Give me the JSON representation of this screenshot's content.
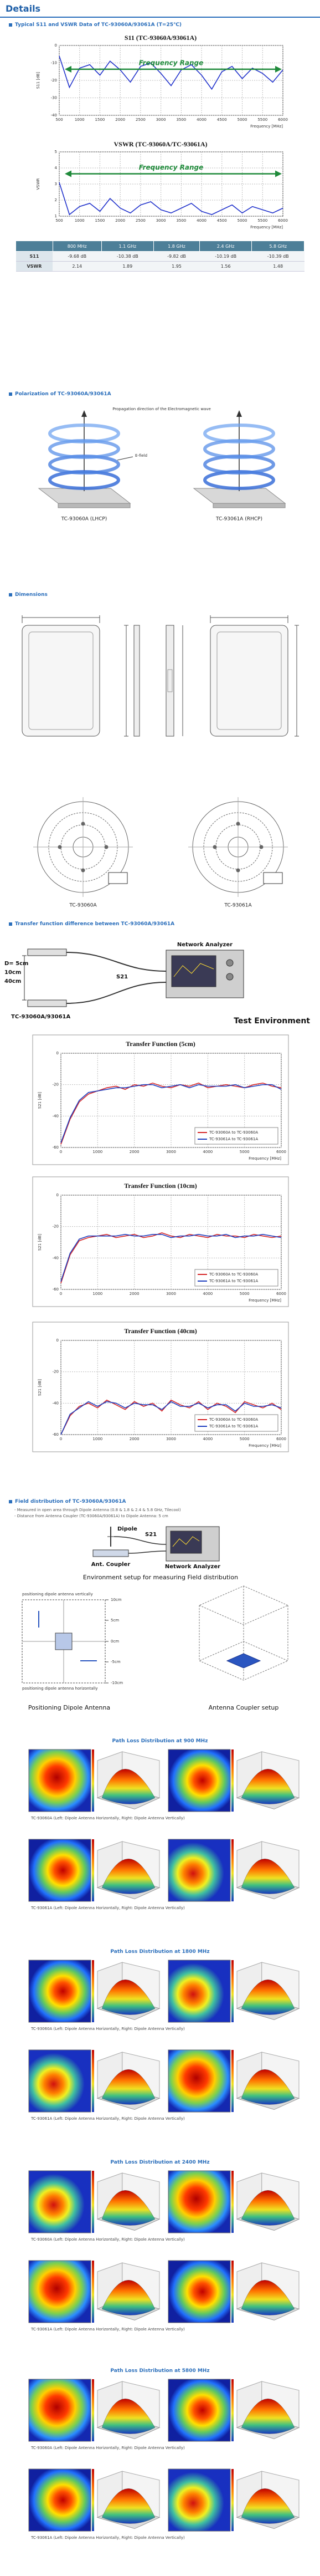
{
  "header": {
    "title": "Details"
  },
  "sections": [
    "Typical S11 and VSWR Data of TC-93060A/93061A (T=25℃)",
    "Polarization of TC-93060A/93061A",
    "Dimensions",
    "Transfer function difference between TC-93060A/93061A",
    "Field distribution of TC-93060A/93061A"
  ],
  "chart_data": [
    {
      "type": "line",
      "title": "S11 (TC-93060A/93061A)",
      "annotation": "Frequency Range",
      "annotation_color": "#1f8a3a",
      "x_label": "Frequency [MHz]",
      "y_label": "S11 [dB]",
      "x": [
        500,
        750,
        1000,
        1250,
        1500,
        1750,
        2000,
        2250,
        2500,
        2750,
        3000,
        3250,
        3500,
        3750,
        4000,
        4250,
        4500,
        4750,
        5000,
        5250,
        5500,
        5750,
        6000
      ],
      "values": [
        -6,
        -24,
        -13,
        -11,
        -17,
        -9,
        -14,
        -21,
        -12,
        -10,
        -16,
        -23,
        -14,
        -11,
        -17,
        -25,
        -15,
        -12,
        -19,
        -13,
        -16,
        -21,
        -14
      ],
      "color": "#2233cc",
      "xlim": [
        500,
        6000
      ],
      "xticks": [
        500,
        1000,
        1500,
        2000,
        2500,
        3000,
        3500,
        4000,
        4500,
        5000,
        5500,
        6000
      ],
      "ylim": [
        -40,
        0
      ],
      "yticks": [
        -40,
        -30,
        -20,
        -10,
        0
      ],
      "grid": true
    },
    {
      "type": "line",
      "title": "VSWR (TC-93060A/TC-93061A)",
      "annotation": "Frequency Range",
      "annotation_color": "#1f8a3a",
      "x_label": "Frequency [MHz]",
      "y_label": "VSWR",
      "x": [
        500,
        750,
        1000,
        1250,
        1500,
        1750,
        2000,
        2250,
        2500,
        2750,
        3000,
        3250,
        3500,
        3750,
        4000,
        4250,
        4500,
        4750,
        5000,
        5250,
        5500,
        5750,
        6000
      ],
      "values": [
        3.1,
        1.1,
        1.6,
        1.8,
        1.3,
        2.1,
        1.5,
        1.2,
        1.7,
        1.9,
        1.4,
        1.2,
        1.5,
        1.8,
        1.3,
        1.1,
        1.4,
        1.7,
        1.2,
        1.6,
        1.4,
        1.2,
        1.5
      ],
      "color": "#2233cc",
      "xlim": [
        500,
        6000
      ],
      "xticks": [
        500,
        1000,
        1500,
        2000,
        2500,
        3000,
        3500,
        4000,
        4500,
        5000,
        5500,
        6000
      ],
      "ylim": [
        1,
        5
      ],
      "yticks": [
        1,
        2,
        3,
        4,
        5
      ],
      "grid": true
    },
    {
      "type": "line",
      "title": "Transfer Function (5cm)",
      "x_label": "Frequency [MHz]",
      "y_label": "S21 [dB]",
      "legend": "lower right",
      "x": [
        0,
        250,
        500,
        750,
        1000,
        1250,
        1500,
        1750,
        2000,
        2250,
        2500,
        2750,
        3000,
        3250,
        3500,
        3750,
        4000,
        4250,
        4500,
        4750,
        5000,
        5250,
        5500,
        5750,
        6000
      ],
      "series": [
        {
          "name": "TC-93060A to TC-93060A",
          "color": "#d62728",
          "values": [
            -58,
            -42,
            -31,
            -26,
            -24,
            -22,
            -21,
            -23,
            -20,
            -21,
            -19,
            -21,
            -22,
            -20,
            -21,
            -19,
            -22,
            -21,
            -20,
            -21,
            -22,
            -20,
            -19,
            -21,
            -22
          ]
        },
        {
          "name": "TC-93061A to TC-93061A",
          "color": "#1f3fbf",
          "values": [
            -57,
            -41,
            -30,
            -25,
            -24,
            -23,
            -22,
            -22,
            -21,
            -20,
            -20,
            -22,
            -21,
            -20,
            -22,
            -20,
            -21,
            -21,
            -21,
            -20,
            -22,
            -21,
            -20,
            -20,
            -23
          ]
        }
      ],
      "xlim": [
        0,
        6000
      ],
      "xticks": [
        0,
        1000,
        2000,
        3000,
        4000,
        5000,
        6000
      ],
      "ylim": [
        -60,
        0
      ],
      "yticks": [
        -60,
        -40,
        -20,
        0
      ],
      "grid": true
    },
    {
      "type": "line",
      "title": "Transfer Function (10cm)",
      "x_label": "Frequency [MHz]",
      "y_label": "S21 [dB]",
      "legend": "lower right",
      "x": [
        0,
        250,
        500,
        750,
        1000,
        1250,
        1500,
        1750,
        2000,
        2250,
        2500,
        2750,
        3000,
        3250,
        3500,
        3750,
        4000,
        4250,
        4500,
        4750,
        5000,
        5250,
        5500,
        5750,
        6000
      ],
      "series": [
        {
          "name": "TC-93060A to TC-93060A",
          "color": "#d62728",
          "values": [
            -56,
            -38,
            -29,
            -27,
            -26,
            -25,
            -27,
            -26,
            -25,
            -27,
            -26,
            -24,
            -26,
            -27,
            -25,
            -26,
            -27,
            -25,
            -26,
            -26,
            -27,
            -25,
            -26,
            -27,
            -26
          ]
        },
        {
          "name": "TC-93061A to TC-93061A",
          "color": "#1f3fbf",
          "values": [
            -55,
            -37,
            -28,
            -26,
            -26,
            -26,
            -26,
            -25,
            -26,
            -26,
            -25,
            -25,
            -27,
            -26,
            -26,
            -25,
            -26,
            -26,
            -25,
            -27,
            -26,
            -26,
            -25,
            -26,
            -27
          ]
        }
      ],
      "xlim": [
        0,
        6000
      ],
      "xticks": [
        0,
        1000,
        2000,
        3000,
        4000,
        5000,
        6000
      ],
      "ylim": [
        -60,
        0
      ],
      "yticks": [
        -60,
        -40,
        -20,
        0
      ],
      "grid": true
    },
    {
      "type": "line",
      "title": "Transfer Function (40cm)",
      "x_label": "Frequency [MHz]",
      "y_label": "S21 [dB]",
      "legend": "lower right",
      "x": [
        0,
        250,
        500,
        750,
        1000,
        1250,
        1500,
        1750,
        2000,
        2250,
        2500,
        2750,
        3000,
        3250,
        3500,
        3750,
        4000,
        4250,
        4500,
        4750,
        5000,
        5250,
        5500,
        5750,
        6000
      ],
      "series": [
        {
          "name": "TC-93060A to TC-93060A",
          "color": "#d62728",
          "values": [
            -60,
            -48,
            -42,
            -40,
            -43,
            -38,
            -41,
            -44,
            -39,
            -42,
            -40,
            -45,
            -38,
            -41,
            -43,
            -39,
            -44,
            -40,
            -42,
            -46,
            -39,
            -41,
            -43,
            -40,
            -44
          ]
        },
        {
          "name": "TC-93061A to TC-93061A",
          "color": "#1f3fbf",
          "values": [
            -60,
            -47,
            -43,
            -39,
            -42,
            -39,
            -40,
            -43,
            -40,
            -41,
            -41,
            -44,
            -39,
            -42,
            -42,
            -40,
            -43,
            -41,
            -41,
            -45,
            -40,
            -42,
            -42,
            -41,
            -43
          ]
        }
      ],
      "xlim": [
        0,
        6000
      ],
      "xticks": [
        0,
        1000,
        2000,
        3000,
        4000,
        5000,
        6000
      ],
      "ylim": [
        -60,
        0
      ],
      "yticks": [
        -60,
        -40,
        -20,
        0
      ],
      "grid": true
    }
  ],
  "table": {
    "header": [
      "800 MHz",
      "1.1 GHz",
      "1.8 GHz",
      "2.4 GHz",
      "5.8 GHz"
    ],
    "rows": [
      {
        "label": "S11",
        "cells": [
          "-9.68 dB",
          "-10.38 dB",
          "-9.82 dB",
          "-10.19 dB",
          "-10.39 dB"
        ]
      },
      {
        "label": "VSWR",
        "cells": [
          "2.14",
          "1.89",
          "1.95",
          "1.56",
          "1.48"
        ]
      }
    ]
  },
  "polarization": {
    "propagation": "Propagation direction of the Electromagnetic wave",
    "efield": "E-field",
    "captions": [
      "TC-93060A (LHCP)",
      "TC-93061A (RHCP)"
    ]
  },
  "dimensions": {
    "captions": [
      "TC-93060A",
      "TC-93061A"
    ]
  },
  "transfer": {
    "distances": [
      "D= 5cm",
      "10cm",
      "40cm"
    ],
    "s21": "S21",
    "device": "TC-93060A/93061A",
    "analyzer": "Network Analyzer",
    "caption": "Test Environment"
  },
  "field": {
    "notes": [
      "- Measured in open area through Dipole Antenna (0.8 & 1.8 & 2.4 & 5.8 GHz, Tilecool)",
      "- Distance from Antenna Coupler (TC-93060A/93061A) to Dipole Antenna: 5 cm"
    ],
    "dipole": "Dipole",
    "s21": "S21",
    "coupler": "Ant. Coupler",
    "analyzer": "Network Analyzer",
    "setup_caption": "Environment setup for measuring Field distribution",
    "vertical": "positioning dipole antenna vertically",
    "horizontal": "positioning dipole antenna horizontally",
    "scale": [
      "10cm",
      "5cm",
      "0cm",
      "-5cm",
      "-10cm"
    ],
    "positioning_caption": "Positioning Dipole Antenna",
    "coupler_caption": "Antenna Coupler setup"
  },
  "path_loss": [
    {
      "title": "Path Loss Distribution at 900 MHz",
      "captions": [
        "TC-93060A (Left: Dipole Antenna Horizontally, Right: Dipole Antenna Vertically)",
        "TC-93061A (Left: Dipole Antenna Horizontally, Right: Dipole Antenna Vertically)"
      ]
    },
    {
      "title": "Path Loss Distribution at 1800 MHz",
      "captions": [
        "TC-93060A (Left: Dipole Antenna Horizontally, Right: Dipole Antenna Vertically)",
        "TC-93061A (Left: Dipole Antenna Horizontally, Right: Dipole Antenna Vertically)"
      ]
    },
    {
      "title": "Path Loss Distribution at 2400 MHz",
      "captions": [
        "TC-93060A (Left: Dipole Antenna Horizontally, Right: Dipole Antenna Vertically)",
        "TC-93061A (Left: Dipole Antenna Horizontally, Right: Dipole Antenna Vertically)"
      ]
    },
    {
      "title": "Path Loss Distribution at 5800 MHz",
      "captions": [
        "TC-93060A (Left: Dipole Antenna Horizontally, Right: Dipole Antenna Vertically)",
        "TC-93061A (Left: Dipole Antenna Horizontally, Right: Dipole Antenna Vertically)"
      ]
    }
  ]
}
